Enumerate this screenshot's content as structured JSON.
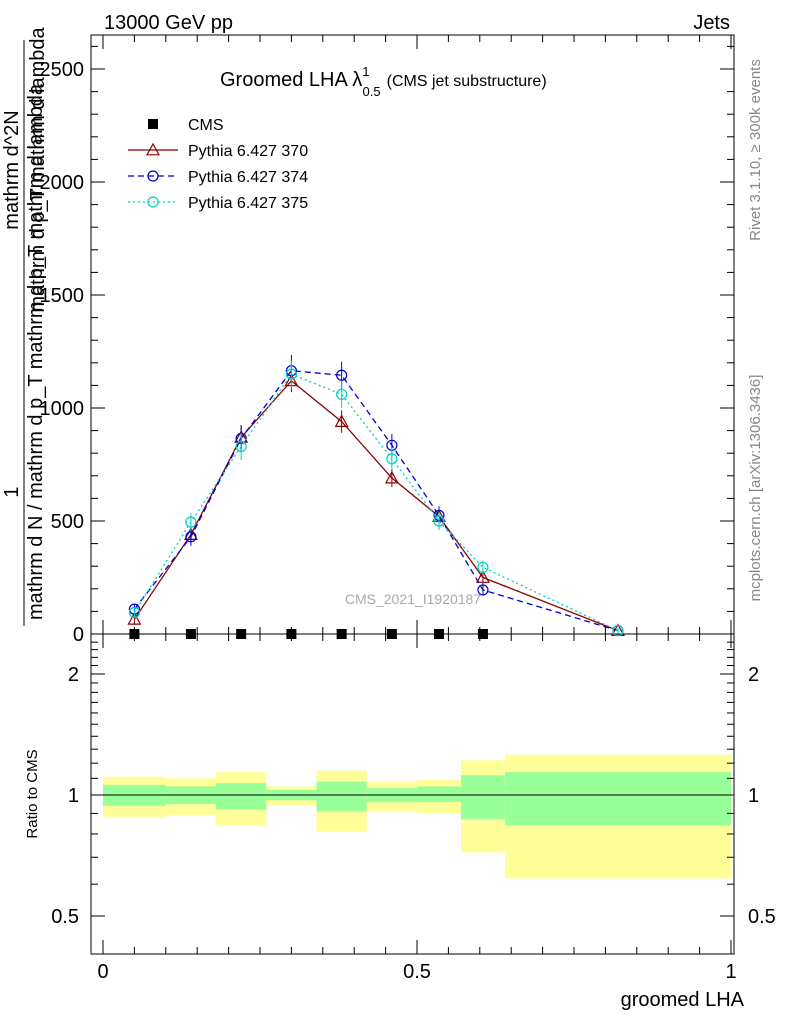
{
  "header": {
    "left": "13000 GeV pp",
    "right": "Jets"
  },
  "side_labels": {
    "rivet": "Rivet 3.1.10, ≥ 300k events",
    "mcplots": "mcplots.cern.ch [arXiv:1306.3436]"
  },
  "chart_data": {
    "type": "line",
    "title_main": "Groomed LHA λ",
    "title_sup": "1",
    "title_sub": "0.5",
    "title_note": "(CMS jet substructure)",
    "watermark": "CMS_2021_I1920187",
    "xlabel": "groomed LHA",
    "ylabel_top": {
      "numerator": "1",
      "denominator": "mathrm d N / mathrm d p_T mathrm d p_T mathrm d lambda",
      "fraction_numerator": "mathrm d^2N",
      "fraction_denominator": "mathrm d p_T mathrm d lambda"
    },
    "ylabel_bottom": "Ratio to CMS",
    "xlim": [
      0,
      1
    ],
    "ylim_top": [
      0,
      2500
    ],
    "ylim_bottom": [
      0.4,
      2.4
    ],
    "x_ticks": [
      "0",
      "0.5",
      "1"
    ],
    "y_ticks_top": [
      "0",
      "500",
      "1000",
      "1500",
      "2000",
      "2500"
    ],
    "y_ticks_bottom": [
      "0.5",
      "1",
      "2"
    ],
    "legend": [
      "CMS",
      "Pythia 6.427 370",
      "Pythia 6.427 374",
      "Pythia 6.427 375"
    ],
    "data_points": {
      "x": [
        0.05,
        0.14,
        0.22,
        0.3,
        0.38,
        0.46,
        0.535,
        0.605
      ],
      "y": [
        0,
        0,
        0,
        0,
        0,
        0,
        0,
        0
      ]
    },
    "series": [
      {
        "name": "Pythia 6.427 370",
        "color": "#8b0000",
        "marker": "triangle",
        "dash": "",
        "x": [
          0.05,
          0.14,
          0.22,
          0.3,
          0.38,
          0.46,
          0.535,
          0.605,
          0.82
        ],
        "y": [
          65,
          440,
          870,
          1120,
          940,
          690,
          520,
          250,
          15
        ],
        "err": [
          20,
          30,
          50,
          50,
          50,
          40,
          40,
          30,
          10
        ]
      },
      {
        "name": "Pythia 6.427 374",
        "color": "#0000cc",
        "marker": "circle",
        "dash": "6,4",
        "x": [
          0.05,
          0.14,
          0.22,
          0.3,
          0.38,
          0.46,
          0.535,
          0.605,
          0.82
        ],
        "y": [
          110,
          430,
          865,
          1165,
          1145,
          835,
          525,
          195,
          15
        ],
        "err": [
          20,
          40,
          60,
          70,
          60,
          50,
          40,
          25,
          10
        ]
      },
      {
        "name": "Pythia 6.427 375",
        "color": "#00d0c0",
        "marker": "circle",
        "dash": "2,3",
        "x": [
          0.05,
          0.14,
          0.22,
          0.3,
          0.38,
          0.46,
          0.535,
          0.605,
          0.82
        ],
        "y": [
          95,
          495,
          830,
          1150,
          1060,
          775,
          500,
          295,
          15
        ],
        "err": [
          20,
          40,
          60,
          60,
          60,
          50,
          40,
          30,
          10
        ]
      }
    ],
    "ratio_bands": [
      {
        "x0": 0.0,
        "x1": 0.1,
        "g_lo": 0.94,
        "g_hi": 1.06,
        "y_lo": 0.88,
        "y_hi": 1.11
      },
      {
        "x0": 0.1,
        "x1": 0.18,
        "g_lo": 0.95,
        "g_hi": 1.05,
        "y_lo": 0.89,
        "y_hi": 1.1
      },
      {
        "x0": 0.18,
        "x1": 0.26,
        "g_lo": 0.92,
        "g_hi": 1.07,
        "y_lo": 0.84,
        "y_hi": 1.14
      },
      {
        "x0": 0.26,
        "x1": 0.34,
        "g_lo": 0.97,
        "g_hi": 1.03,
        "y_lo": 0.94,
        "y_hi": 1.05
      },
      {
        "x0": 0.34,
        "x1": 0.42,
        "g_lo": 0.91,
        "g_hi": 1.08,
        "y_lo": 0.81,
        "y_hi": 1.15
      },
      {
        "x0": 0.42,
        "x1": 0.5,
        "g_lo": 0.96,
        "g_hi": 1.04,
        "y_lo": 0.91,
        "y_hi": 1.08
      },
      {
        "x0": 0.5,
        "x1": 0.57,
        "g_lo": 0.96,
        "g_hi": 1.05,
        "y_lo": 0.9,
        "y_hi": 1.09
      },
      {
        "x0": 0.57,
        "x1": 0.64,
        "g_lo": 0.87,
        "g_hi": 1.12,
        "y_lo": 0.72,
        "y_hi": 1.22
      },
      {
        "x0": 0.64,
        "x1": 1.0,
        "g_lo": 0.84,
        "g_hi": 1.14,
        "y_lo": 0.62,
        "y_hi": 1.26
      }
    ],
    "colors": {
      "band_green": "#99ff99",
      "band_yellow": "#ffff99"
    }
  }
}
